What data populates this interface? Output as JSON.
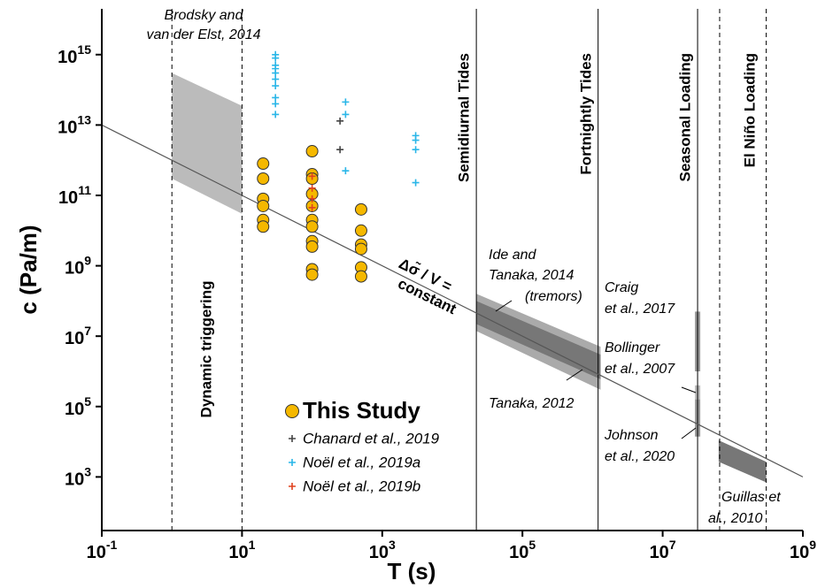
{
  "chart_data": {
    "type": "scatter",
    "xlabel": "T (s)",
    "ylabel": "c (Pa/m)",
    "xscale": "log",
    "yscale": "log",
    "xlim": [
      0.1,
      1000000000
    ],
    "ylim": [
      30,
      20000000000000000
    ],
    "xticks": [
      {
        "value": 0.1,
        "label": "10^-1"
      },
      {
        "value": 10,
        "label": "10^1"
      },
      {
        "value": 1000,
        "label": "10^3"
      },
      {
        "value": 100000,
        "label": "10^5"
      },
      {
        "value": 10000000,
        "label": "10^7"
      },
      {
        "value": 1000000000,
        "label": "10^9"
      }
    ],
    "yticks": [
      {
        "value": 1000,
        "label": "10^3"
      },
      {
        "value": 100000,
        "label": "10^5"
      },
      {
        "value": 10000000,
        "label": "10^7"
      },
      {
        "value": 1000000000,
        "label": "10^9"
      },
      {
        "value": 100000000000,
        "label": "10^11"
      },
      {
        "value": 10000000000000,
        "label": "10^13"
      },
      {
        "value": 1000000000000000,
        "label": "10^15"
      }
    ],
    "series": [
      {
        "name": "This Study",
        "color": "#f5b800",
        "marker": "circle",
        "x": [
          20,
          20,
          20,
          20,
          20,
          20,
          100,
          100,
          100,
          100,
          100,
          100,
          100,
          100,
          100,
          100,
          100,
          500,
          500,
          500,
          500,
          500,
          500
        ],
        "values": [
          800000000000,
          300000000000,
          80000000000,
          50000000000,
          20000000000,
          13000000000,
          1800000000000,
          400000000000,
          300000000000,
          110000000000,
          50000000000,
          20000000000,
          13000000000,
          5000000000,
          3500000000,
          800000000,
          560000000,
          40000000000,
          10000000000,
          4000000000,
          3000000000,
          900000000,
          500000000
        ]
      },
      {
        "name": "Chanard et al., 2019",
        "color": "#444444",
        "marker": "plus",
        "x": [
          250,
          250
        ],
        "values": [
          13000000000000,
          2000000000000
        ]
      },
      {
        "name": "Noël et al., 2019a",
        "color": "#29b6e8",
        "marker": "plus",
        "x": [
          30,
          30,
          30,
          30,
          30,
          30,
          30,
          30,
          30,
          30,
          300,
          300,
          300,
          3000,
          3000,
          3000,
          3000
        ],
        "values": [
          1000000000000000,
          800000000000000,
          500000000000000,
          400000000000000,
          300000000000000,
          200000000000000,
          130000000000000,
          60000000000000,
          40000000000000,
          20000000000000,
          45000000000000,
          20000000000000,
          500000000000,
          5000000000000,
          3700000000000,
          2000000000000,
          230000000000
        ]
      },
      {
        "name": "Noël et al., 2019b",
        "color": "#e0421f",
        "marker": "plus",
        "x": [
          100,
          100,
          100,
          100
        ],
        "values": [
          350000000000,
          160000000000,
          80000000000,
          45000000000
        ]
      }
    ],
    "reference_line": {
      "label": [
        "Δσ̃ / V =",
        "constant"
      ],
      "color": "#555555",
      "x": [
        0.1,
        1000000000
      ],
      "values": [
        10000000000000,
        1000
      ]
    },
    "regions": [
      {
        "label": [
          "Brodsky and",
          "van der Elst, 2014"
        ],
        "kind": "band",
        "color": "#bbbbbb",
        "x": [
          1,
          10,
          10,
          1
        ],
        "values": [
          300000000000000,
          35000000000000,
          30000000000,
          300000000000
        ]
      },
      {
        "label": [
          "Ide and",
          "Tanaka, 2014",
          "(tremors)"
        ],
        "kind": "band",
        "color": "#aaaaaa",
        "x": [
          22000,
          1300000,
          1300000,
          22000
        ],
        "values": [
          160000000,
          5000000,
          300000,
          14000000
        ]
      },
      {
        "label": [
          "Tanaka, 2012"
        ],
        "kind": "band",
        "color": "#777777",
        "x": [
          22000,
          1300000,
          1300000,
          22000
        ],
        "values": [
          100000000,
          3000000,
          600000,
          22000000
        ]
      },
      {
        "label": [
          "Craig",
          "et al., 2017"
        ],
        "kind": "bar",
        "color": "#999999",
        "x": [
          31500000,
          31500000
        ],
        "values": [
          50000000,
          1000000
        ]
      },
      {
        "label": [
          "Bollinger",
          "et al., 2007"
        ],
        "kind": "bar",
        "color": "#bbbbbb",
        "x": [
          31500000,
          31500000
        ],
        "values": [
          400000,
          160000
        ]
      },
      {
        "label": [
          "Johnson",
          "et al., 2020"
        ],
        "kind": "bar",
        "color": "#999999",
        "x": [
          31500000,
          31500000
        ],
        "values": [
          160000,
          14000
        ]
      },
      {
        "label": [
          "Guillas et",
          "al., 2010"
        ],
        "kind": "band",
        "color": "#777777",
        "x": [
          63000000,
          300000000,
          300000000,
          63000000
        ],
        "values": [
          11000,
          2700,
          700,
          2700
        ]
      }
    ],
    "vlines": [
      {
        "x": 1,
        "style": "dashed",
        "label": "Dynamic triggering"
      },
      {
        "x": 10,
        "style": "dashed"
      },
      {
        "x": 22000,
        "style": "solid",
        "label": "Semidiurnal Tides"
      },
      {
        "x": 1200000,
        "style": "solid",
        "label": "Fortnightly Tides"
      },
      {
        "x": 31500000,
        "style": "solid",
        "label": "Seasonal Loading"
      },
      {
        "x": 65000000,
        "style": "dashed",
        "label": "El Niño Loading"
      },
      {
        "x": 300000000,
        "style": "dashed"
      }
    ]
  }
}
